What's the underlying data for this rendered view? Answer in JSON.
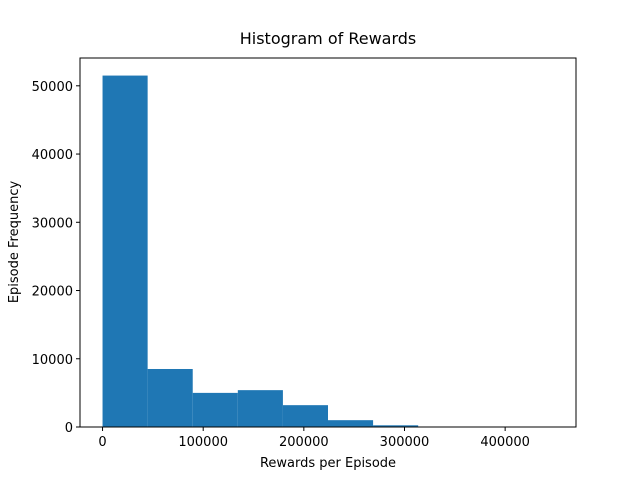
{
  "chart_data": {
    "type": "histogram",
    "title": "Histogram of Rewards",
    "x_label": "Rewards per Episode",
    "y_label": "Episode Frequency",
    "bins": [
      0,
      44800,
      89600,
      134400,
      179200,
      224000,
      268800,
      313600,
      358400,
      403200,
      448000
    ],
    "values": [
      51500,
      8500,
      5000,
      5400,
      3200,
      1000,
      250,
      50,
      20,
      10
    ],
    "color": "#1f77b4",
    "xlim": [
      -22400,
      470400
    ],
    "ylim": [
      0,
      54075
    ],
    "xticks": [
      0,
      100000,
      200000,
      300000,
      400000
    ],
    "yticks": [
      0,
      10000,
      20000,
      30000,
      40000,
      50000
    ]
  }
}
